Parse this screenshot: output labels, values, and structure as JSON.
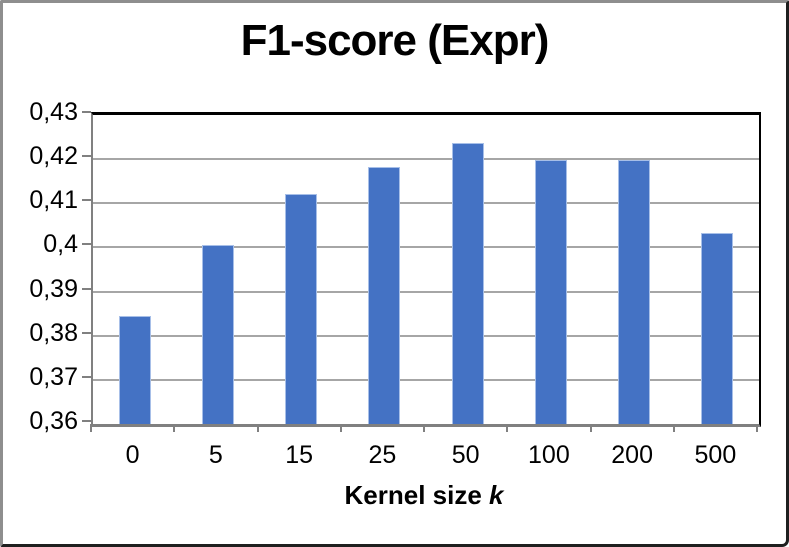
{
  "title": "F1-score (Expr)",
  "chart_data": {
    "type": "bar",
    "title": "F1-score (Expr)",
    "categories": [
      "0",
      "5",
      "15",
      "25",
      "50",
      "100",
      "200",
      "500"
    ],
    "values": [
      0.3845,
      0.4005,
      0.4122,
      0.4183,
      0.4236,
      0.4198,
      0.4198,
      0.4032
    ],
    "series_name": "F1-score",
    "xlabel": "Kernel size k",
    "xlabel_main": "Kernel size ",
    "xlabel_var": "k",
    "ylabel": "",
    "ylim": [
      0.36,
      0.43
    ],
    "ytick_step": 0.01,
    "ytick_labels": [
      "0,36",
      "0,37",
      "0,38",
      "0,39",
      "0,4",
      "0,41",
      "0,42",
      "0,43"
    ],
    "decimal_separator": ",",
    "grid": true,
    "legend_position": "none",
    "colors": {
      "bar_fill": "#4472C4",
      "bar_edge": "#a7bfe8",
      "gridline": "#a6a6a6",
      "axis_line": "#808080",
      "plot_border": "#000000",
      "text": "#000000"
    }
  }
}
